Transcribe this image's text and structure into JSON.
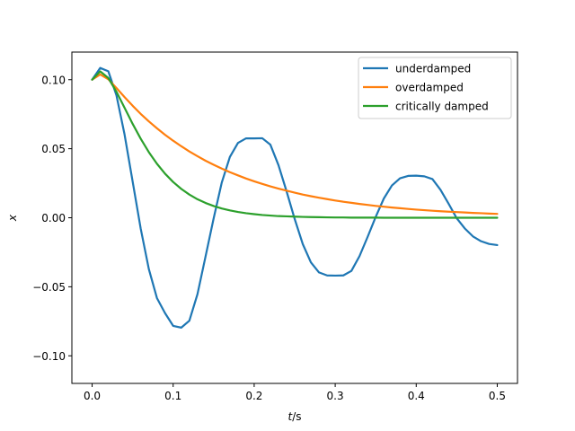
{
  "chart_data": {
    "type": "line",
    "title": "",
    "xlabel_symbol": "t",
    "xlabel_unit": "/s",
    "ylabel": "x",
    "xlim": [
      -0.025,
      0.525
    ],
    "ylim": [
      -0.12,
      0.12
    ],
    "xticks": [
      0.0,
      0.1,
      0.2,
      0.3,
      0.4,
      0.5
    ],
    "xtick_labels": [
      "0.0",
      "0.1",
      "0.2",
      "0.3",
      "0.4",
      "0.5"
    ],
    "yticks": [
      -0.1,
      -0.05,
      0.0,
      0.05,
      0.1
    ],
    "ytick_labels": [
      "−0.10",
      "−0.05",
      "0.00",
      "0.05",
      "0.10"
    ],
    "grid": false,
    "legend_position": "top-right",
    "series": [
      {
        "name": "underdamped",
        "color": "#1f77b4",
        "x": [
          0.0,
          0.01,
          0.02,
          0.03,
          0.04,
          0.05,
          0.06,
          0.07,
          0.08,
          0.09,
          0.1,
          0.11,
          0.12,
          0.13,
          0.14,
          0.15,
          0.16,
          0.17,
          0.18,
          0.19,
          0.2,
          0.21,
          0.22,
          0.23,
          0.24,
          0.25,
          0.26,
          0.27,
          0.28,
          0.29,
          0.3,
          0.31,
          0.32,
          0.33,
          0.34,
          0.35,
          0.36,
          0.37,
          0.38,
          0.39,
          0.4,
          0.41,
          0.42,
          0.43,
          0.44,
          0.45,
          0.46,
          0.47,
          0.48,
          0.49,
          0.5
        ],
        "y": [
          0.1,
          0.1085,
          0.1061,
          0.0887,
          0.0604,
          0.0262,
          -0.008,
          -0.0372,
          -0.0582,
          -0.0691,
          -0.0783,
          -0.0796,
          -0.0746,
          -0.0554,
          -0.028,
          -0.0004,
          0.0255,
          0.044,
          0.0542,
          0.0575,
          0.0575,
          0.0576,
          0.0529,
          0.0381,
          0.0191,
          -0.0009,
          -0.0191,
          -0.0323,
          -0.0396,
          -0.0418,
          -0.0419,
          -0.0418,
          -0.0385,
          -0.0278,
          -0.0139,
          0.0006,
          0.0139,
          0.0234,
          0.0286,
          0.0303,
          0.0305,
          0.03,
          0.028,
          0.0202,
          0.0101,
          -0.0004,
          -0.0078,
          -0.0135,
          -0.017,
          -0.019,
          -0.0198
        ]
      },
      {
        "name": "overdamped",
        "color": "#ff7f0e",
        "x": [
          0.0,
          0.01,
          0.02,
          0.03,
          0.04,
          0.05,
          0.06,
          0.07,
          0.08,
          0.09,
          0.1,
          0.11,
          0.12,
          0.13,
          0.14,
          0.15,
          0.16,
          0.17,
          0.18,
          0.19,
          0.2,
          0.21,
          0.22,
          0.23,
          0.24,
          0.25,
          0.26,
          0.27,
          0.28,
          0.29,
          0.3,
          0.31,
          0.32,
          0.33,
          0.34,
          0.35,
          0.36,
          0.37,
          0.38,
          0.39,
          0.4,
          0.41,
          0.42,
          0.43,
          0.44,
          0.45,
          0.46,
          0.47,
          0.48,
          0.49,
          0.5
        ],
        "y": [
          0.1,
          0.1038,
          0.1003,
          0.094,
          0.0874,
          0.0811,
          0.0752,
          0.0698,
          0.0648,
          0.0601,
          0.0558,
          0.0518,
          0.048,
          0.0446,
          0.0413,
          0.0384,
          0.0356,
          0.033,
          0.0307,
          0.0284,
          0.0264,
          0.0245,
          0.0227,
          0.0211,
          0.0196,
          0.0182,
          0.0168,
          0.0156,
          0.0145,
          0.0135,
          0.0125,
          0.0116,
          0.0108,
          0.01,
          0.0093,
          0.0086,
          0.008,
          0.0074,
          0.0069,
          0.0064,
          0.0059,
          0.0055,
          0.0051,
          0.0047,
          0.0044,
          0.0041,
          0.0038,
          0.0035,
          0.0033,
          0.003,
          0.0028
        ]
      },
      {
        "name": "critically damped",
        "color": "#2ca02c",
        "x": [
          0.0,
          0.01,
          0.02,
          0.03,
          0.04,
          0.05,
          0.06,
          0.07,
          0.08,
          0.09,
          0.1,
          0.11,
          0.12,
          0.13,
          0.14,
          0.15,
          0.16,
          0.17,
          0.18,
          0.19,
          0.2,
          0.21,
          0.22,
          0.23,
          0.24,
          0.25,
          0.26,
          0.27,
          0.28,
          0.29,
          0.3,
          0.31,
          0.32,
          0.33,
          0.34,
          0.35,
          0.36,
          0.37,
          0.38,
          0.39,
          0.4,
          0.41,
          0.42,
          0.43,
          0.44,
          0.45,
          0.46,
          0.47,
          0.48,
          0.49,
          0.5
        ],
        "y": [
          0.1,
          0.106,
          0.1012,
          0.0913,
          0.0797,
          0.068,
          0.0572,
          0.0475,
          0.0391,
          0.0319,
          0.0259,
          0.0209,
          0.0168,
          0.0134,
          0.0107,
          0.0085,
          0.0067,
          0.0053,
          0.0042,
          0.0033,
          0.0026,
          0.002,
          0.0016,
          0.0012,
          0.001,
          0.0008,
          0.0006,
          0.0005,
          0.0004,
          0.0003,
          0.0002,
          0.0002,
          0.0001,
          0.0001,
          0.0001,
          0.0001,
          0.0,
          0.0,
          0.0,
          0.0,
          0.0,
          0.0,
          0.0,
          0.0,
          0.0,
          0.0,
          0.0,
          0.0,
          0.0,
          0.0,
          0.0
        ]
      }
    ]
  }
}
